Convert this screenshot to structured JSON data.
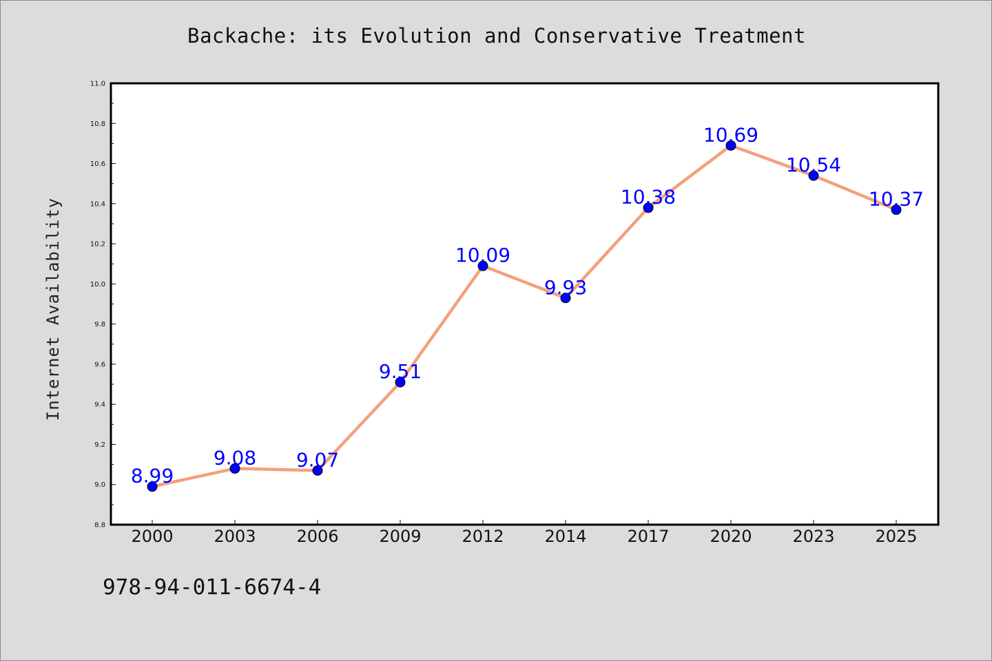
{
  "chart_data": {
    "type": "line",
    "title": "Backache: its Evolution and Conservative Treatment",
    "xlabel": "",
    "ylabel": "Internet Availability",
    "categories": [
      "2000",
      "2003",
      "2006",
      "2009",
      "2012",
      "2014",
      "2017",
      "2020",
      "2023",
      "2025"
    ],
    "values": [
      8.99,
      9.08,
      9.07,
      9.51,
      10.09,
      9.93,
      10.38,
      10.69,
      10.54,
      10.37
    ],
    "data_labels": [
      "8.99",
      "9.08",
      "9.07",
      "9.51",
      "10.09",
      "9.93",
      "10.38",
      "10.69",
      "10.54",
      "10.37"
    ],
    "ylim": [
      8.8,
      11.0
    ],
    "y_ticks": [
      "8.8",
      "9.0",
      "9.2",
      "9.4",
      "9.6",
      "9.8",
      "10.0",
      "10.2",
      "10.4",
      "10.6",
      "10.8",
      "11.0"
    ],
    "grid": false,
    "legend": "none",
    "colors": {
      "line": "#f4a07c",
      "marker": "#0000ff",
      "label": "#0000ff",
      "plot_background": "#ffffff",
      "page_background": "#dcdcdc"
    }
  },
  "footer": {
    "code": "978-94-011-6674-4"
  }
}
